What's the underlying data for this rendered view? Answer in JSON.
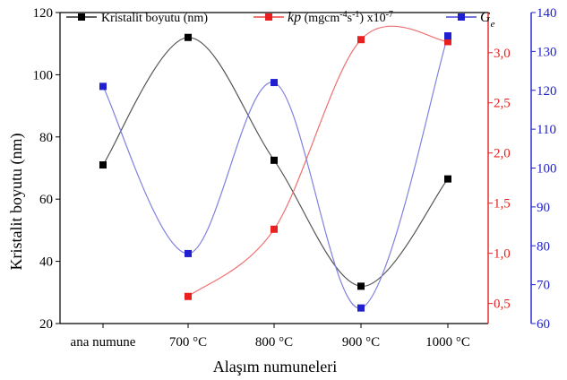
{
  "chart_data": {
    "type": "line",
    "categories": [
      "ana numune",
      "700 °C",
      "800 °C",
      "900 °C",
      "1000 °C"
    ],
    "xlabel": "Alaşım numuneleri",
    "ylabel": "Kristalit boyutu (nm)",
    "axes": {
      "left": {
        "ylim": [
          20,
          120
        ],
        "ticks": [
          20,
          40,
          60,
          80,
          100,
          120
        ],
        "color": "#000000"
      },
      "right_red": {
        "ylim": [
          0.3,
          3.4
        ],
        "ticks": [
          "0,5",
          "1,0",
          "1,5",
          "2,0",
          "2,5",
          "3,0"
        ],
        "tick_values": [
          0.5,
          1.0,
          1.5,
          2.0,
          2.5,
          3.0
        ],
        "color": "#e8201f"
      },
      "right_blue": {
        "ylim": [
          60,
          140
        ],
        "ticks": [
          60,
          70,
          80,
          90,
          100,
          110,
          120,
          130,
          140
        ],
        "color": "#2020d0"
      }
    },
    "series": [
      {
        "key": "kristalit",
        "name": "Kristalit boyutu (nm)",
        "axis": "left",
        "color": "#000000",
        "line_color": "#555555",
        "values": [
          71,
          112,
          72.5,
          32,
          66.5
        ]
      },
      {
        "key": "kp",
        "name_parts": [
          "kp",
          " (mgcm",
          "-4",
          "s",
          "-1",
          ") x10",
          "-7"
        ],
        "axis": "right_red",
        "color": "#e8201f",
        "line_color": "#f07070",
        "values": [
          null,
          0.57,
          1.24,
          3.13,
          3.11
        ]
      },
      {
        "key": "ge",
        "name_parts": [
          "G",
          "e"
        ],
        "axis": "right_blue",
        "color": "#2020d0",
        "line_color": "#8080e0",
        "values": [
          121,
          78,
          122,
          64,
          134
        ]
      }
    ],
    "grid": false,
    "legend_position": "top"
  }
}
